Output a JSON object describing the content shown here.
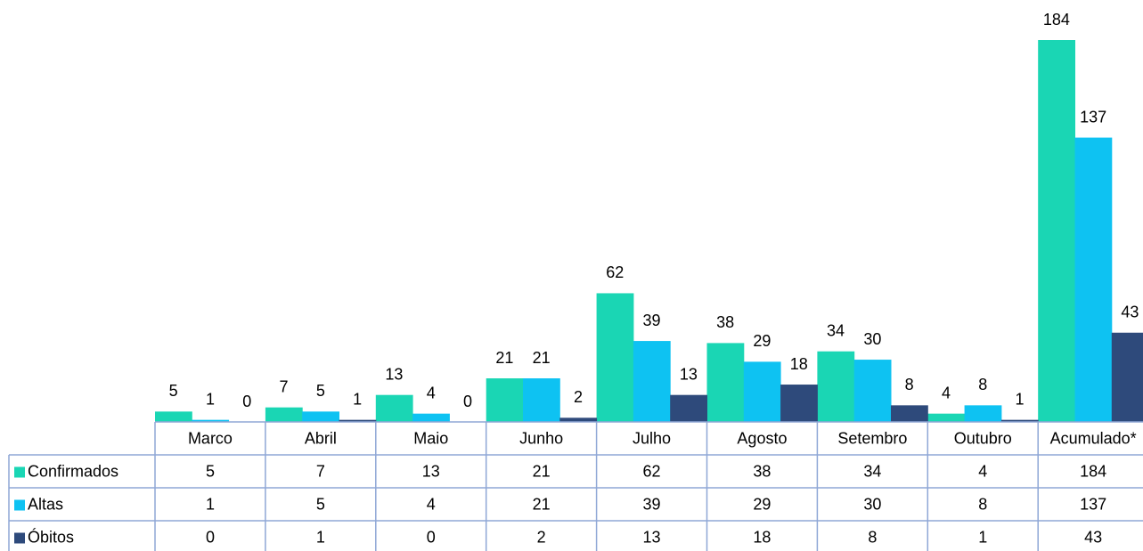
{
  "chart_data": {
    "type": "bar",
    "categories": [
      "Marco",
      "Abril",
      "Maio",
      "Junho",
      "Julho",
      "Agosto",
      "Setembro",
      "Outubro",
      "Acumulado*"
    ],
    "series": [
      {
        "name": "Confirmados",
        "color": "#1ad6b4",
        "values": [
          5,
          7,
          13,
          21,
          62,
          38,
          34,
          4,
          184
        ]
      },
      {
        "name": "Altas",
        "color": "#0ec2f2",
        "values": [
          1,
          5,
          4,
          21,
          39,
          29,
          30,
          8,
          137
        ]
      },
      {
        "name": "Óbitos",
        "color": "#2e4a7b",
        "values": [
          0,
          1,
          0,
          2,
          13,
          18,
          8,
          1,
          43
        ]
      }
    ],
    "data_table": true
  }
}
